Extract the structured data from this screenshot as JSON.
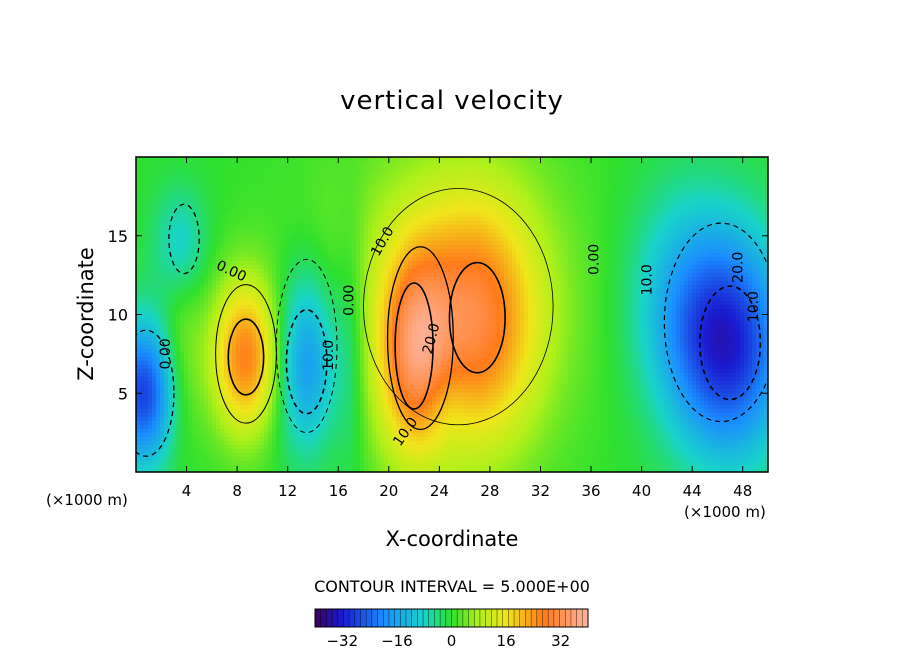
{
  "chart_data": {
    "type": "heatmap",
    "title": "vertical velocity",
    "xlabel": "X-coordinate",
    "ylabel": "Z-coordinate",
    "x_unit": "(×1000 m)",
    "y_unit": "(×1000 m)",
    "xlim": [
      0,
      50
    ],
    "ylim": [
      0,
      20
    ],
    "x_ticks": [
      4,
      8,
      12,
      16,
      20,
      24,
      28,
      32,
      36,
      40,
      44,
      48
    ],
    "y_ticks": [
      5,
      10,
      15
    ],
    "contour_interval_text": "CONTOUR INTERVAL = 5.000E+00",
    "colorbar": {
      "ticks": [
        -32,
        -16,
        0,
        16,
        32
      ],
      "tick_labels": [
        "−32",
        "−16",
        "0",
        "16",
        "32"
      ],
      "range": [
        -40,
        40
      ]
    },
    "contour_labels": [
      "10.0",
      "10.0",
      "20.0",
      "0.00",
      "0.00",
      "0.00",
      "0.00",
      "10.0",
      "10.0",
      "10.0",
      "20.0"
    ],
    "features": [
      {
        "x": 22,
        "z": 8,
        "value": 35
      },
      {
        "x": 27,
        "z": 9.5,
        "value": 27
      },
      {
        "x": 8.7,
        "z": 7.3,
        "value": 26
      },
      {
        "x": 47,
        "z": 8,
        "value": -33
      },
      {
        "x": 0.5,
        "z": 5,
        "value": -28
      },
      {
        "x": 13.5,
        "z": 7,
        "value": -20
      }
    ]
  }
}
